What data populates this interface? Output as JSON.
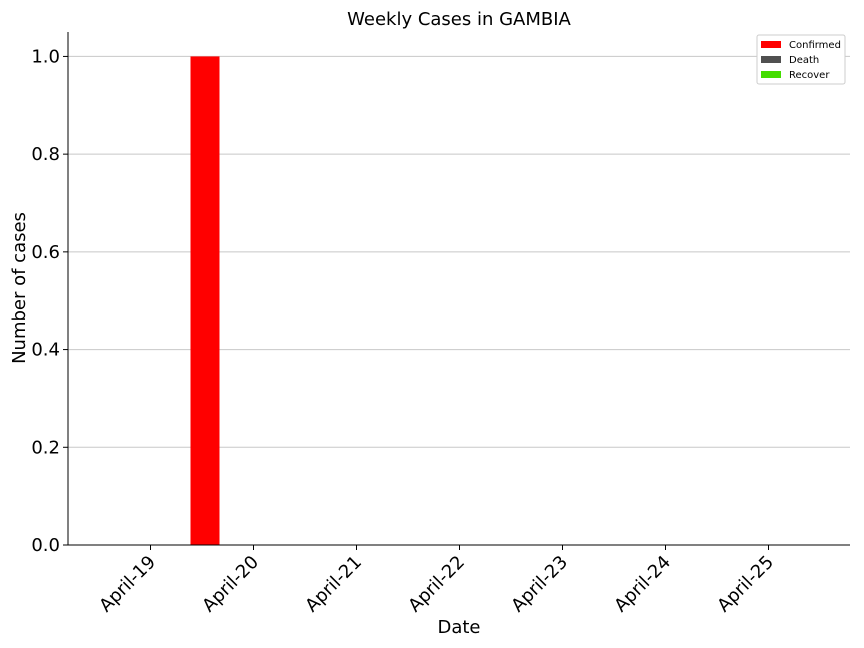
{
  "chart_data": {
    "type": "bar",
    "title": "Weekly Cases in GAMBIA",
    "xlabel": "Date",
    "ylabel": "Number of cases",
    "categories": [
      "April-19",
      "April-20",
      "April-21",
      "April-22",
      "April-23",
      "April-24",
      "April-25"
    ],
    "series": [
      {
        "name": "Confirmed",
        "color": "#ff0000",
        "values": [
          0,
          0,
          1,
          0,
          0,
          0,
          0
        ]
      },
      {
        "name": "Death",
        "color": "#505050",
        "values": [
          0,
          0,
          0,
          0,
          0,
          0,
          0
        ]
      },
      {
        "name": "Recover",
        "color": "#44dd00",
        "values": [
          0,
          0,
          0,
          0,
          0,
          0,
          0
        ]
      }
    ],
    "ylim": [
      0,
      1.05
    ],
    "yticks": [
      "0.0",
      "0.2",
      "0.4",
      "0.6",
      "0.8",
      "1.0"
    ],
    "grid": "y",
    "legend_position": "top-right"
  }
}
